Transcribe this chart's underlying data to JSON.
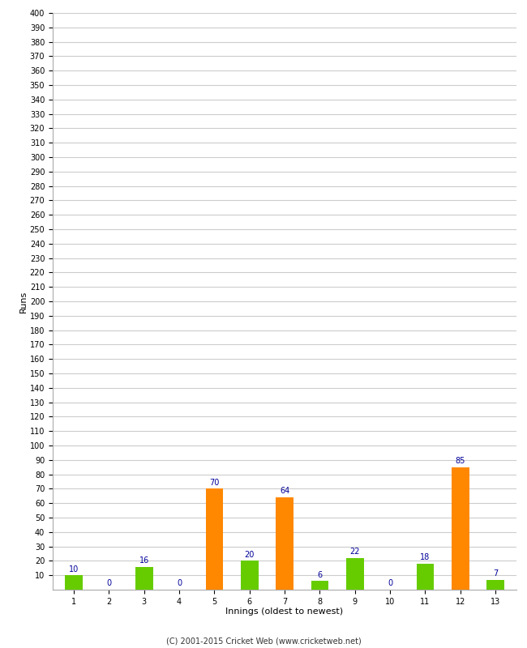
{
  "xlabel": "Innings (oldest to newest)",
  "ylabel": "Runs",
  "categories": [
    1,
    2,
    3,
    4,
    5,
    6,
    7,
    8,
    9,
    10,
    11,
    12,
    13
  ],
  "values": [
    10,
    0,
    16,
    0,
    70,
    20,
    64,
    6,
    22,
    0,
    18,
    85,
    7
  ],
  "colors": [
    "#66cc00",
    "#66cc00",
    "#66cc00",
    "#66cc00",
    "#ff8800",
    "#66cc00",
    "#ff8800",
    "#66cc00",
    "#66cc00",
    "#66cc00",
    "#66cc00",
    "#ff8800",
    "#66cc00"
  ],
  "ylim": [
    0,
    400
  ],
  "yticks": [
    10,
    20,
    30,
    40,
    50,
    60,
    70,
    80,
    90,
    100,
    110,
    120,
    130,
    140,
    150,
    160,
    170,
    180,
    190,
    200,
    210,
    220,
    230,
    240,
    250,
    260,
    270,
    280,
    290,
    300,
    310,
    320,
    330,
    340,
    350,
    360,
    370,
    380,
    390,
    400
  ],
  "label_color": "#000099",
  "label_fontsize": 7,
  "tick_fontsize": 7,
  "background_color": "#ffffff",
  "grid_color": "#cccccc",
  "footer": "(C) 2001-2015 Cricket Web (www.cricketweb.net)",
  "bar_width": 0.5
}
